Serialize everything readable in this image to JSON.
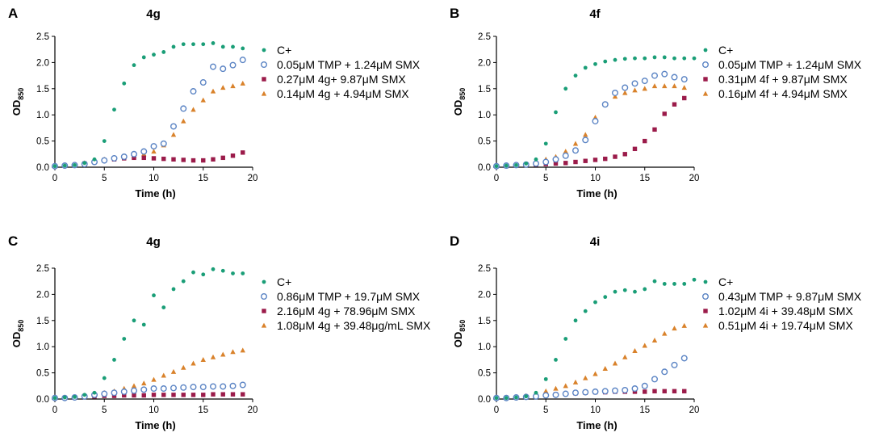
{
  "colors": {
    "c_plus": "#1a9e77",
    "tmp": "#5b84c4",
    "high": "#9b1b4a",
    "low": "#d9822b",
    "axis": "#000000"
  },
  "chart_data": [
    {
      "type": "scatter",
      "panel_letter": "A",
      "title": "4g",
      "xlabel": "Time (h)",
      "ylabel_main": "OD",
      "ylabel_sub": "850",
      "xlim": [
        0,
        20
      ],
      "ylim": [
        0,
        2.5
      ],
      "xticks": [
        0,
        5,
        10,
        15,
        20
      ],
      "yticks": [
        0.0,
        0.5,
        1.0,
        1.5,
        2.0,
        2.5
      ],
      "series": [
        {
          "name": "C+",
          "marker": "dot",
          "color_key": "c_plus",
          "x": [
            0,
            1,
            2,
            3,
            4,
            5,
            6,
            7,
            8,
            9,
            10,
            11,
            12,
            13,
            14,
            15,
            16,
            17,
            18,
            19
          ],
          "y": [
            0.02,
            0.03,
            0.04,
            0.08,
            0.15,
            0.5,
            1.1,
            1.6,
            1.95,
            2.1,
            2.15,
            2.2,
            2.3,
            2.35,
            2.35,
            2.35,
            2.37,
            2.3,
            2.3,
            2.27
          ]
        },
        {
          "name": "0.05μM TMP + 1.24μM SMX",
          "marker": "open-circle",
          "color_key": "tmp",
          "x": [
            0,
            1,
            2,
            3,
            4,
            5,
            6,
            7,
            8,
            9,
            10,
            11,
            12,
            13,
            14,
            15,
            16,
            17,
            18,
            19
          ],
          "y": [
            0.02,
            0.03,
            0.04,
            0.06,
            0.1,
            0.13,
            0.17,
            0.2,
            0.25,
            0.3,
            0.4,
            0.45,
            0.78,
            1.12,
            1.45,
            1.62,
            1.92,
            1.88,
            1.95,
            2.05
          ]
        },
        {
          "name": "0.27μM 4g+ 9.87μM SMX",
          "marker": "square",
          "color_key": "high",
          "x": [
            0,
            1,
            2,
            3,
            4,
            5,
            6,
            7,
            8,
            9,
            10,
            11,
            12,
            13,
            14,
            15,
            16,
            17,
            18,
            19
          ],
          "y": [
            0.02,
            0.03,
            0.04,
            0.07,
            0.1,
            0.13,
            0.15,
            0.17,
            0.18,
            0.18,
            0.17,
            0.16,
            0.15,
            0.14,
            0.13,
            0.13,
            0.15,
            0.18,
            0.22,
            0.28
          ]
        },
        {
          "name": "0.14μM 4g + 4.94μM SMX",
          "marker": "triangle",
          "color_key": "low",
          "x": [
            0,
            1,
            2,
            3,
            4,
            5,
            6,
            7,
            8,
            9,
            10,
            11,
            12,
            13,
            14,
            15,
            16,
            17,
            18,
            19
          ],
          "y": [
            0.02,
            0.03,
            0.05,
            0.08,
            0.12,
            0.15,
            0.18,
            0.2,
            0.22,
            0.25,
            0.3,
            0.42,
            0.62,
            0.88,
            1.1,
            1.28,
            1.45,
            1.52,
            1.55,
            1.6
          ]
        }
      ]
    },
    {
      "type": "scatter",
      "panel_letter": "B",
      "title": "4f",
      "xlabel": "Time (h)",
      "ylabel_main": "OD",
      "ylabel_sub": "850",
      "xlim": [
        0,
        20
      ],
      "ylim": [
        0,
        2.5
      ],
      "xticks": [
        0,
        5,
        10,
        15,
        20
      ],
      "yticks": [
        0.0,
        0.5,
        1.0,
        1.5,
        2.0,
        2.5
      ],
      "series": [
        {
          "name": "C+",
          "marker": "dot",
          "color_key": "c_plus",
          "x": [
            0,
            1,
            2,
            3,
            4,
            5,
            6,
            7,
            8,
            9,
            10,
            11,
            12,
            13,
            14,
            15,
            16,
            17,
            18,
            19,
            20
          ],
          "y": [
            0.02,
            0.03,
            0.04,
            0.07,
            0.15,
            0.45,
            1.05,
            1.5,
            1.75,
            1.9,
            1.97,
            2.02,
            2.05,
            2.07,
            2.08,
            2.08,
            2.1,
            2.1,
            2.08,
            2.08,
            2.08
          ]
        },
        {
          "name": "0.05μM TMP + 1.24μM SMX",
          "marker": "open-circle",
          "color_key": "tmp",
          "x": [
            0,
            1,
            2,
            3,
            4,
            5,
            6,
            7,
            8,
            9,
            10,
            11,
            12,
            13,
            14,
            15,
            16,
            17,
            18,
            19
          ],
          "y": [
            0.02,
            0.03,
            0.04,
            0.05,
            0.07,
            0.1,
            0.15,
            0.22,
            0.32,
            0.52,
            0.88,
            1.2,
            1.42,
            1.52,
            1.6,
            1.65,
            1.75,
            1.78,
            1.72,
            1.68
          ]
        },
        {
          "name": "0.31μM 4f + 9.87μM SMX",
          "marker": "square",
          "color_key": "high",
          "x": [
            0,
            1,
            2,
            3,
            4,
            5,
            6,
            7,
            8,
            9,
            10,
            11,
            12,
            13,
            14,
            15,
            16,
            17,
            18,
            19
          ],
          "y": [
            0.02,
            0.02,
            0.03,
            0.04,
            0.05,
            0.06,
            0.07,
            0.08,
            0.1,
            0.12,
            0.14,
            0.16,
            0.2,
            0.25,
            0.35,
            0.5,
            0.72,
            1.02,
            1.2,
            1.32
          ]
        },
        {
          "name": "0.16μM 4f + 4.94μM SMX",
          "marker": "triangle",
          "color_key": "low",
          "x": [
            0,
            1,
            2,
            3,
            4,
            5,
            6,
            7,
            8,
            9,
            10,
            11,
            12,
            13,
            14,
            15,
            16,
            17,
            18,
            19
          ],
          "y": [
            0.02,
            0.03,
            0.04,
            0.06,
            0.1,
            0.15,
            0.2,
            0.3,
            0.45,
            0.62,
            0.95,
            1.2,
            1.35,
            1.42,
            1.47,
            1.5,
            1.55,
            1.55,
            1.55,
            1.52
          ]
        }
      ]
    },
    {
      "type": "scatter",
      "panel_letter": "C",
      "title": "4g",
      "xlabel": "Time (h)",
      "ylabel_main": "OD",
      "ylabel_sub": "850",
      "xlim": [
        0,
        20
      ],
      "ylim": [
        0,
        2.5
      ],
      "xticks": [
        0,
        5,
        10,
        15,
        20
      ],
      "yticks": [
        0.0,
        0.5,
        1.0,
        1.5,
        2.0,
        2.5
      ],
      "series": [
        {
          "name": "C+",
          "marker": "dot",
          "color_key": "c_plus",
          "x": [
            0,
            1,
            2,
            3,
            4,
            5,
            6,
            7,
            8,
            9,
            10,
            11,
            12,
            13,
            14,
            15,
            16,
            17,
            18,
            19
          ],
          "y": [
            0.02,
            0.03,
            0.04,
            0.08,
            0.12,
            0.4,
            0.75,
            1.15,
            1.5,
            1.42,
            1.98,
            1.75,
            2.1,
            2.25,
            2.42,
            2.38,
            2.48,
            2.45,
            2.4,
            2.4
          ]
        },
        {
          "name": "0.86μM TMP + 19.7μM SMX",
          "marker": "open-circle",
          "color_key": "tmp",
          "x": [
            0,
            1,
            2,
            3,
            4,
            5,
            6,
            7,
            8,
            9,
            10,
            11,
            12,
            13,
            14,
            15,
            16,
            17,
            18,
            19
          ],
          "y": [
            0.02,
            0.02,
            0.03,
            0.05,
            0.08,
            0.1,
            0.12,
            0.14,
            0.16,
            0.18,
            0.2,
            0.2,
            0.21,
            0.22,
            0.23,
            0.23,
            0.24,
            0.24,
            0.25,
            0.27
          ]
        },
        {
          "name": "2.16μM 4g + 78.96μM SMX",
          "marker": "square",
          "color_key": "high",
          "x": [
            0,
            1,
            2,
            3,
            4,
            5,
            6,
            7,
            8,
            9,
            10,
            11,
            12,
            13,
            14,
            15,
            16,
            17,
            18,
            19
          ],
          "y": [
            0.02,
            0.02,
            0.03,
            0.04,
            0.05,
            0.06,
            0.06,
            0.07,
            0.07,
            0.07,
            0.08,
            0.08,
            0.08,
            0.08,
            0.08,
            0.08,
            0.09,
            0.09,
            0.09,
            0.09
          ]
        },
        {
          "name": "1.08μM 4g + 39.48μg/mL SMX",
          "marker": "triangle",
          "color_key": "low",
          "x": [
            0,
            1,
            2,
            3,
            4,
            5,
            6,
            7,
            8,
            9,
            10,
            11,
            12,
            13,
            14,
            15,
            16,
            17,
            18,
            19
          ],
          "y": [
            0.02,
            0.03,
            0.04,
            0.06,
            0.08,
            0.12,
            0.15,
            0.2,
            0.25,
            0.3,
            0.37,
            0.45,
            0.52,
            0.6,
            0.68,
            0.75,
            0.8,
            0.85,
            0.9,
            0.93
          ]
        }
      ]
    },
    {
      "type": "scatter",
      "panel_letter": "D",
      "title": "4i",
      "xlabel": "Time (h)",
      "ylabel_main": "OD",
      "ylabel_sub": "850",
      "xlim": [
        0,
        20
      ],
      "ylim": [
        0,
        2.5
      ],
      "xticks": [
        0,
        5,
        10,
        15,
        20
      ],
      "yticks": [
        0.0,
        0.5,
        1.0,
        1.5,
        2.0,
        2.5
      ],
      "series": [
        {
          "name": "C+",
          "marker": "dot",
          "color_key": "c_plus",
          "x": [
            0,
            1,
            2,
            3,
            4,
            5,
            6,
            7,
            8,
            9,
            10,
            11,
            12,
            13,
            14,
            15,
            16,
            17,
            18,
            19,
            20
          ],
          "y": [
            0.02,
            0.02,
            0.03,
            0.05,
            0.12,
            0.38,
            0.75,
            1.15,
            1.5,
            1.68,
            1.85,
            1.95,
            2.05,
            2.08,
            2.05,
            2.1,
            2.25,
            2.2,
            2.2,
            2.2,
            2.28
          ]
        },
        {
          "name": "0.43μM TMP + 9.87μM SMX",
          "marker": "open-circle",
          "color_key": "tmp",
          "x": [
            0,
            1,
            2,
            3,
            4,
            5,
            6,
            7,
            8,
            9,
            10,
            11,
            12,
            13,
            14,
            15,
            16,
            17,
            18,
            19
          ],
          "y": [
            0.02,
            0.02,
            0.03,
            0.04,
            0.05,
            0.07,
            0.08,
            0.1,
            0.12,
            0.13,
            0.14,
            0.15,
            0.16,
            0.17,
            0.2,
            0.25,
            0.38,
            0.52,
            0.65,
            0.78
          ]
        },
        {
          "name": "1.02μM 4i + 39.48μM SMX",
          "marker": "square",
          "color_key": "high",
          "x": [
            0,
            1,
            2,
            3,
            4,
            5,
            6,
            7,
            8,
            9,
            10,
            11,
            12,
            13,
            14,
            15,
            16,
            17,
            18,
            19
          ],
          "y": [
            0.02,
            0.02,
            0.03,
            0.04,
            0.06,
            0.08,
            0.09,
            0.1,
            0.11,
            0.12,
            0.13,
            0.13,
            0.14,
            0.14,
            0.14,
            0.14,
            0.15,
            0.15,
            0.15,
            0.15
          ]
        },
        {
          "name": "0.51μM 4i + 19.74μM SMX",
          "marker": "triangle",
          "color_key": "low",
          "x": [
            0,
            1,
            2,
            3,
            4,
            5,
            6,
            7,
            8,
            9,
            10,
            11,
            12,
            13,
            14,
            15,
            16,
            17,
            18,
            19
          ],
          "y": [
            0.02,
            0.03,
            0.04,
            0.06,
            0.1,
            0.15,
            0.2,
            0.25,
            0.32,
            0.4,
            0.48,
            0.58,
            0.68,
            0.8,
            0.92,
            1.02,
            1.12,
            1.25,
            1.35,
            1.4
          ]
        }
      ]
    }
  ]
}
